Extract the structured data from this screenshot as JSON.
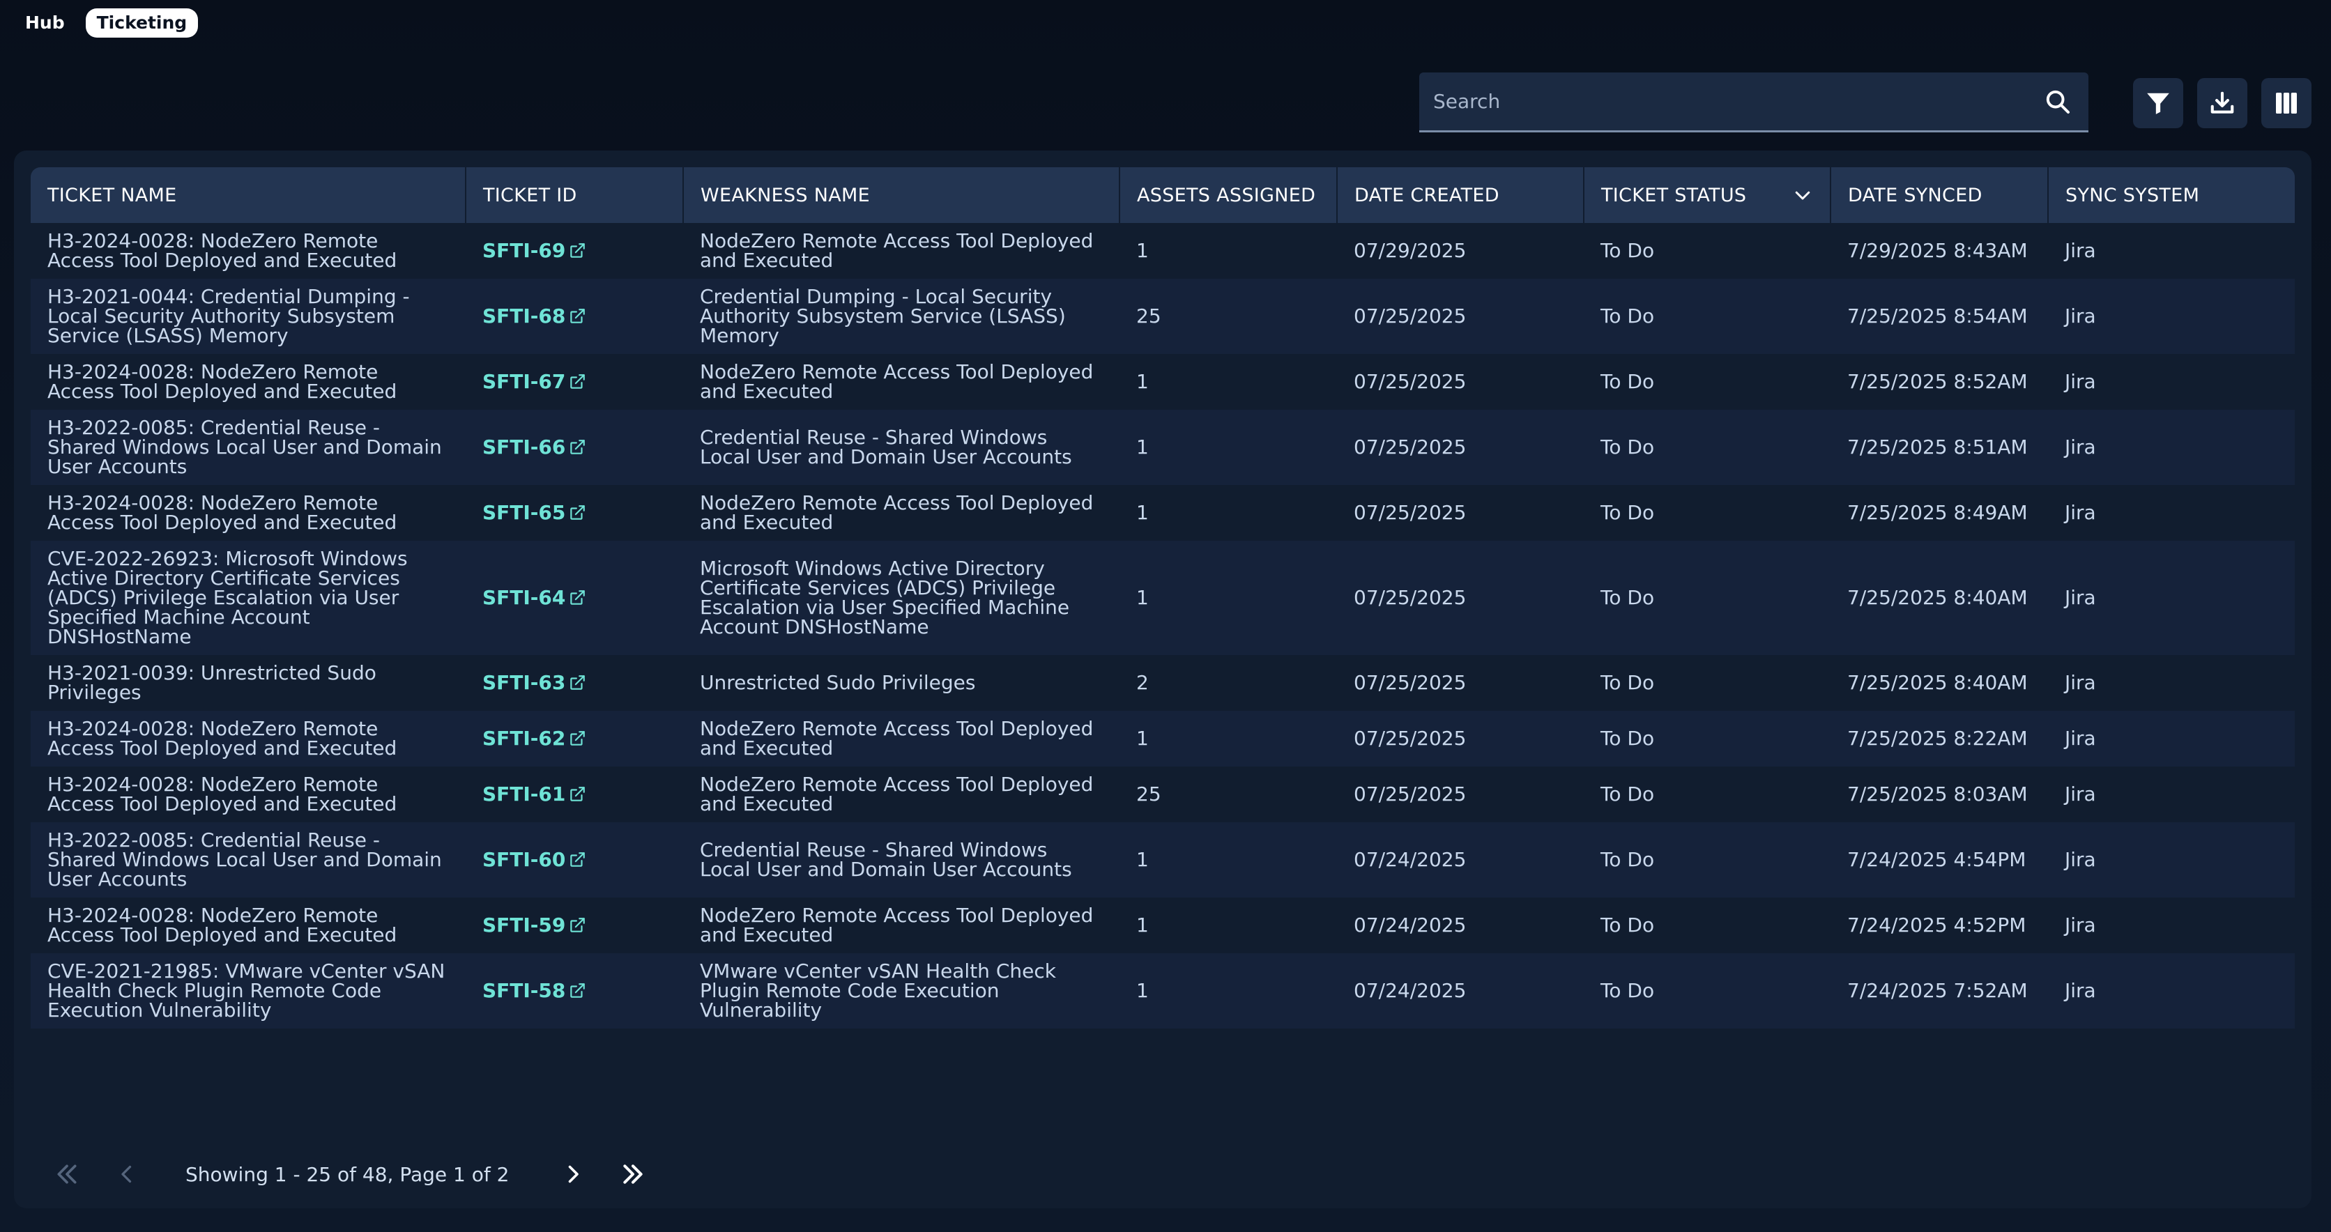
{
  "tabs": [
    {
      "label": "Hub",
      "active": false
    },
    {
      "label": "Ticketing",
      "active": true
    }
  ],
  "search": {
    "placeholder": "Search",
    "value": ""
  },
  "toolbar": {
    "icons": [
      "filter-icon",
      "download-icon",
      "columns-icon"
    ]
  },
  "table": {
    "columns": [
      "TICKET NAME",
      "TICKET ID",
      "WEAKNESS NAME",
      "ASSETS ASSIGNED",
      "DATE CREATED",
      "TICKET STATUS",
      "DATE SYNCED",
      "SYNC SYSTEM"
    ],
    "rows": [
      {
        "ticket_name": "H3-2024-0028: NodeZero Remote Access Tool Deployed and Executed",
        "ticket_id": "SFTI-69",
        "weakness_name": "NodeZero Remote Access Tool Deployed and Executed",
        "assets": "1",
        "created": "07/29/2025",
        "status": "To Do",
        "synced": "7/29/2025 8:43AM",
        "system": "Jira"
      },
      {
        "ticket_name": "H3-2021-0044: Credential Dumping - Local Security Authority Subsystem Service (LSASS) Memory",
        "ticket_id": "SFTI-68",
        "weakness_name": "Credential Dumping - Local Security Authority Subsystem Service (LSASS) Memory",
        "assets": "25",
        "created": "07/25/2025",
        "status": "To Do",
        "synced": "7/25/2025 8:54AM",
        "system": "Jira"
      },
      {
        "ticket_name": "H3-2024-0028: NodeZero Remote Access Tool Deployed and Executed",
        "ticket_id": "SFTI-67",
        "weakness_name": "NodeZero Remote Access Tool Deployed and Executed",
        "assets": "1",
        "created": "07/25/2025",
        "status": "To Do",
        "synced": "7/25/2025 8:52AM",
        "system": "Jira"
      },
      {
        "ticket_name": "H3-2022-0085: Credential Reuse - Shared Windows Local User and Domain User Accounts",
        "ticket_id": "SFTI-66",
        "weakness_name": "Credential Reuse - Shared Windows Local User and Domain User Accounts",
        "assets": "1",
        "created": "07/25/2025",
        "status": "To Do",
        "synced": "7/25/2025 8:51AM",
        "system": "Jira"
      },
      {
        "ticket_name": "H3-2024-0028: NodeZero Remote Access Tool Deployed and Executed",
        "ticket_id": "SFTI-65",
        "weakness_name": "NodeZero Remote Access Tool Deployed and Executed",
        "assets": "1",
        "created": "07/25/2025",
        "status": "To Do",
        "synced": "7/25/2025 8:49AM",
        "system": "Jira"
      },
      {
        "ticket_name": "CVE-2022-26923: Microsoft Windows Active Directory Certificate Services (ADCS) Privilege Escalation via User Specified Machine Account DNSHostName",
        "ticket_id": "SFTI-64",
        "weakness_name": "Microsoft Windows Active Directory Certificate Services (ADCS) Privilege Escalation via User Specified Machine Account DNSHostName",
        "assets": "1",
        "created": "07/25/2025",
        "status": "To Do",
        "synced": "7/25/2025 8:40AM",
        "system": "Jira"
      },
      {
        "ticket_name": "H3-2021-0039: Unrestricted Sudo Privileges",
        "ticket_id": "SFTI-63",
        "weakness_name": "Unrestricted Sudo Privileges",
        "assets": "2",
        "created": "07/25/2025",
        "status": "To Do",
        "synced": "7/25/2025 8:40AM",
        "system": "Jira"
      },
      {
        "ticket_name": "H3-2024-0028: NodeZero Remote Access Tool Deployed and Executed",
        "ticket_id": "SFTI-62",
        "weakness_name": "NodeZero Remote Access Tool Deployed and Executed",
        "assets": "1",
        "created": "07/25/2025",
        "status": "To Do",
        "synced": "7/25/2025 8:22AM",
        "system": "Jira"
      },
      {
        "ticket_name": "H3-2024-0028: NodeZero Remote Access Tool Deployed and Executed",
        "ticket_id": "SFTI-61",
        "weakness_name": "NodeZero Remote Access Tool Deployed and Executed",
        "assets": "25",
        "created": "07/25/2025",
        "status": "To Do",
        "synced": "7/25/2025 8:03AM",
        "system": "Jira"
      },
      {
        "ticket_name": "H3-2022-0085: Credential Reuse - Shared Windows Local User and Domain User Accounts",
        "ticket_id": "SFTI-60",
        "weakness_name": "Credential Reuse - Shared Windows Local User and Domain User Accounts",
        "assets": "1",
        "created": "07/24/2025",
        "status": "To Do",
        "synced": "7/24/2025 4:54PM",
        "system": "Jira"
      },
      {
        "ticket_name": "H3-2024-0028: NodeZero Remote Access Tool Deployed and Executed",
        "ticket_id": "SFTI-59",
        "weakness_name": "NodeZero Remote Access Tool Deployed and Executed",
        "assets": "1",
        "created": "07/24/2025",
        "status": "To Do",
        "synced": "7/24/2025 4:52PM",
        "system": "Jira"
      },
      {
        "ticket_name": "CVE-2021-21985: VMware vCenter vSAN Health Check Plugin Remote Code Execution Vulnerability",
        "ticket_id": "SFTI-58",
        "weakness_name": "VMware vCenter vSAN Health Check Plugin Remote Code Execution Vulnerability",
        "assets": "1",
        "created": "07/24/2025",
        "status": "To Do",
        "synced": "7/24/2025 7:52AM",
        "system": "Jira"
      }
    ]
  },
  "pagination": {
    "summary": "Showing 1 - 25 of 48, Page 1 of 2"
  }
}
